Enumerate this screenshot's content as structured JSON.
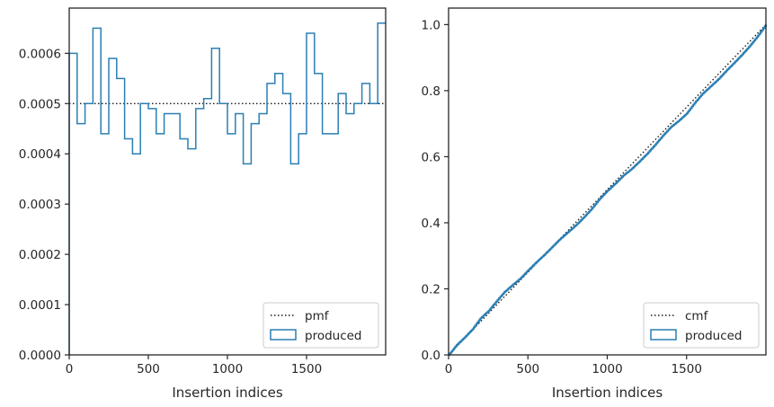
{
  "colors": {
    "series": "#2a7fb4",
    "reference": "#1a1a1a",
    "axes": "#262626",
    "legend_border": "#cccccc"
  },
  "chart_data": [
    {
      "type": "histogram",
      "xlabel": "Insertion indices",
      "ylabel": "",
      "xlim": [
        0,
        2000
      ],
      "ylim": [
        0,
        0.00069
      ],
      "xticks": [
        0,
        500,
        1000,
        1500
      ],
      "xtick_labels": [
        "0",
        "500",
        "1000",
        "1500"
      ],
      "yticks": [
        0,
        0.0001,
        0.0002,
        0.0003,
        0.0004,
        0.0005,
        0.0006
      ],
      "ytick_labels": [
        "0.0000",
        "0.0001",
        "0.0002",
        "0.0003",
        "0.0004",
        "0.0005",
        "0.0006"
      ],
      "legend": {
        "placement": "lower-right",
        "entries": [
          "pmf",
          "produced"
        ]
      },
      "reference_line": {
        "name": "pmf",
        "style": "dotted",
        "y": 0.0005
      },
      "series": [
        {
          "name": "produced",
          "style": "step",
          "bin_edges": [
            0,
            50,
            100,
            150,
            200,
            250,
            300,
            350,
            400,
            450,
            500,
            550,
            600,
            650,
            700,
            750,
            800,
            850,
            900,
            950,
            1000,
            1050,
            1100,
            1150,
            1200,
            1250,
            1300,
            1350,
            1400,
            1450,
            1500,
            1550,
            1600,
            1650,
            1700,
            1750,
            1800,
            1850,
            1900,
            1950,
            2000
          ],
          "values": [
            0.0006,
            0.00046,
            0.0005,
            0.00065,
            0.00044,
            0.00059,
            0.00055,
            0.00043,
            0.0004,
            0.0005,
            0.00049,
            0.00044,
            0.00048,
            0.00048,
            0.00043,
            0.00041,
            0.00049,
            0.00051,
            0.00061,
            0.0005,
            0.00044,
            0.00048,
            0.00038,
            0.00046,
            0.00048,
            0.00054,
            0.00056,
            0.00052,
            0.00038,
            0.00044,
            0.00064,
            0.00056,
            0.00044,
            0.00044,
            0.00052,
            0.00048,
            0.0005,
            0.00054,
            0.0005,
            0.00066
          ]
        }
      ]
    },
    {
      "type": "line",
      "xlabel": "Insertion indices",
      "ylabel": "",
      "xlim": [
        0,
        2000
      ],
      "ylim": [
        0,
        1.05
      ],
      "xticks": [
        0,
        500,
        1000,
        1500
      ],
      "xtick_labels": [
        "0",
        "500",
        "1000",
        "1500"
      ],
      "yticks": [
        0,
        0.2,
        0.4,
        0.6,
        0.8,
        1.0
      ],
      "ytick_labels": [
        "0.0",
        "0.2",
        "0.4",
        "0.6",
        "0.8",
        "1.0"
      ],
      "legend": {
        "placement": "lower-right",
        "entries": [
          "cmf",
          "produced"
        ]
      },
      "reference_line": {
        "name": "cmf",
        "style": "dotted",
        "x": [
          0,
          2000
        ],
        "y": [
          0,
          1.0
        ]
      },
      "series": [
        {
          "name": "produced",
          "style": "step",
          "x": [
            0,
            50,
            100,
            150,
            200,
            250,
            300,
            350,
            400,
            450,
            500,
            550,
            600,
            650,
            700,
            750,
            800,
            850,
            900,
            950,
            1000,
            1050,
            1100,
            1150,
            1200,
            1250,
            1300,
            1350,
            1400,
            1450,
            1500,
            1550,
            1600,
            1650,
            1700,
            1750,
            1800,
            1850,
            1900,
            1950,
            2000
          ],
          "y": [
            0.0,
            0.03,
            0.053,
            0.078,
            0.111,
            0.133,
            0.162,
            0.19,
            0.211,
            0.231,
            0.256,
            0.28,
            0.302,
            0.326,
            0.35,
            0.371,
            0.392,
            0.416,
            0.442,
            0.472,
            0.497,
            0.519,
            0.543,
            0.562,
            0.585,
            0.609,
            0.636,
            0.664,
            0.69,
            0.709,
            0.731,
            0.763,
            0.791,
            0.813,
            0.835,
            0.861,
            0.885,
            0.91,
            0.937,
            0.967,
            1.0
          ]
        }
      ]
    }
  ]
}
